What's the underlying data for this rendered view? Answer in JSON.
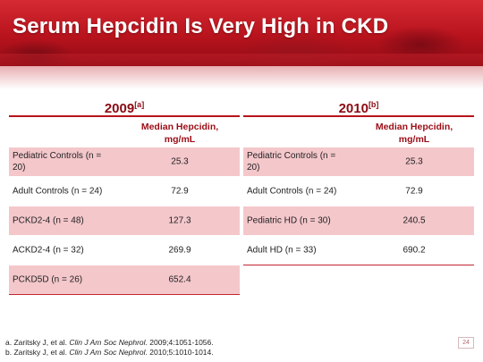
{
  "title": "Serum Hepcidin Is Very High in CKD",
  "tables": {
    "left": {
      "year": "2009",
      "ref": "[a]",
      "header": [
        "Median Hepcidin,",
        "mg/mL"
      ],
      "rows": [
        {
          "label": "Pediatric Controls (n = 20)",
          "value": "25.3"
        },
        {
          "label": "Adult Controls (n = 24)",
          "value": "72.9"
        },
        {
          "label": "PCKD2-4 (n = 48)",
          "value": "127.3"
        },
        {
          "label": "ACKD2-4 (n = 32)",
          "value": "269.9"
        },
        {
          "label": "PCKD5D (n = 26)",
          "value": "652.4"
        }
      ]
    },
    "right": {
      "year": "2010",
      "ref": "[b]",
      "header": [
        "Median Hepcidin,",
        "mg/mL"
      ],
      "rows": [
        {
          "label": "Pediatric Controls (n = 20)",
          "value": "25.3"
        },
        {
          "label": "Adult Controls (n = 24)",
          "value": "72.9"
        },
        {
          "label": "Pediatric HD (n = 30)",
          "value": "240.5"
        },
        {
          "label": "Adult HD (n = 33)",
          "value": "690.2"
        }
      ]
    }
  },
  "references": {
    "a": {
      "prefix": "a. Zaritsky J, et al. ",
      "journal": "Clin J Am Soc Nephrol",
      "suffix": ". 2009;4:1051-1056."
    },
    "b": {
      "prefix": "b. Zaritsky J, et al. ",
      "journal": "Clin J Am Soc Nephrol",
      "suffix": ". 2010;5:1010-1014."
    }
  },
  "page_number": "24",
  "colors": {
    "banner": "#b8131d",
    "accent_text": "#9b0d16",
    "row_shade": "#f4c7cb"
  }
}
